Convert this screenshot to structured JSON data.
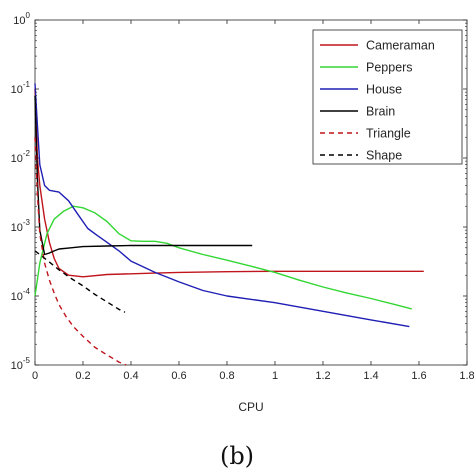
{
  "chart_data": {
    "type": "line",
    "title": "",
    "xlabel": "CPU",
    "ylabel": "",
    "xlim": [
      0,
      1.8
    ],
    "ylim": [
      1e-05,
      1
    ],
    "yscale": "log",
    "grid": false,
    "legend": "top-right",
    "x_ticks": [
      "0",
      "0.2",
      "0.4",
      "0.6",
      "0.8",
      "1",
      "1.2",
      "1.4",
      "1.6",
      "1.8"
    ],
    "y_ticks": [
      {
        "value": 1,
        "base": "10",
        "exp": "0"
      },
      {
        "value": 0.1,
        "base": "10",
        "exp": "-1"
      },
      {
        "value": 0.01,
        "base": "10",
        "exp": "-2"
      },
      {
        "value": 0.001,
        "base": "10",
        "exp": "-3"
      },
      {
        "value": 0.0001,
        "base": "10",
        "exp": "-4"
      },
      {
        "value": 1e-05,
        "base": "10",
        "exp": "-5"
      }
    ],
    "series": [
      {
        "name": "Cameraman",
        "color": "#c0151d",
        "dash": "solid",
        "x": [
          0.0,
          0.01,
          0.02,
          0.04,
          0.06,
          0.08,
          0.1,
          0.14,
          0.2,
          0.3,
          0.4,
          0.5,
          0.6,
          0.8,
          1.0,
          1.2,
          1.4,
          1.62
        ],
        "y": [
          0.1,
          0.01,
          0.004,
          0.0013,
          0.0006,
          0.00035,
          0.00025,
          0.0002,
          0.00019,
          0.000205,
          0.00021,
          0.000215,
          0.00022,
          0.000225,
          0.000228,
          0.000228,
          0.000228,
          0.000228
        ]
      },
      {
        "name": "Peppers",
        "color": "#33d633",
        "dash": "solid",
        "x": [
          0.0,
          0.02,
          0.05,
          0.08,
          0.12,
          0.16,
          0.2,
          0.25,
          0.3,
          0.35,
          0.4,
          0.45,
          0.5,
          0.55,
          0.6,
          0.7,
          0.8,
          0.9,
          1.0,
          1.1,
          1.2,
          1.3,
          1.4,
          1.5,
          1.57
        ],
        "y": [
          0.0001,
          0.0003,
          0.0008,
          0.0013,
          0.0017,
          0.002,
          0.0019,
          0.0016,
          0.0012,
          0.0008,
          0.00063,
          0.00062,
          0.00062,
          0.00058,
          0.0005,
          0.0004,
          0.00033,
          0.00027,
          0.00022,
          0.00017,
          0.000135,
          0.00011,
          9.2e-05,
          7.5e-05,
          6.5e-05
        ]
      },
      {
        "name": "House",
        "color": "#1f1fb4",
        "dash": "solid",
        "x": [
          0.0,
          0.01,
          0.02,
          0.04,
          0.06,
          0.08,
          0.1,
          0.14,
          0.18,
          0.22,
          0.26,
          0.3,
          0.35,
          0.4,
          0.5,
          0.6,
          0.7,
          0.8,
          1.0,
          1.2,
          1.4,
          1.56
        ],
        "y": [
          0.12,
          0.03,
          0.008,
          0.004,
          0.0034,
          0.0033,
          0.0032,
          0.0024,
          0.0015,
          0.00095,
          0.00075,
          0.0006,
          0.00045,
          0.00032,
          0.00022,
          0.00016,
          0.00012,
          0.0001,
          8e-05,
          6e-05,
          4.5e-05,
          3.6e-05
        ]
      },
      {
        "name": "Brain",
        "color": "#000000",
        "dash": "solid",
        "x": [
          0.0,
          0.01,
          0.02,
          0.04,
          0.06,
          0.08,
          0.1,
          0.15,
          0.2,
          0.3,
          0.4,
          0.5,
          0.6,
          0.7,
          0.8,
          0.905
        ],
        "y": [
          0.08,
          0.005,
          0.0009,
          0.0004,
          0.00042,
          0.00045,
          0.00048,
          0.0005,
          0.00052,
          0.00053,
          0.00054,
          0.00054,
          0.00054,
          0.00054,
          0.00054,
          0.00054
        ]
      },
      {
        "name": "Triangle",
        "color": "#c0151d",
        "dash": "dashed",
        "x": [
          0.0,
          0.01,
          0.02,
          0.04,
          0.06,
          0.08,
          0.1,
          0.13,
          0.16,
          0.2,
          0.25,
          0.3,
          0.35,
          0.38
        ],
        "y": [
          0.02,
          0.003,
          0.0008,
          0.0003,
          0.00017,
          0.00011,
          7.5e-05,
          5e-05,
          3.6e-05,
          2.6e-05,
          1.8e-05,
          1.4e-05,
          1.1e-05,
          1e-05
        ]
      },
      {
        "name": "Shape",
        "color": "#000000",
        "dash": "dashed",
        "x": [
          0.0,
          0.02,
          0.05,
          0.1,
          0.15,
          0.2,
          0.25,
          0.3,
          0.35,
          0.375
        ],
        "y": [
          0.00045,
          0.0004,
          0.00033,
          0.00024,
          0.00018,
          0.00014,
          0.000105,
          8.2e-05,
          6.4e-05,
          5.8e-05
        ]
      }
    ]
  },
  "caption": "(b)"
}
